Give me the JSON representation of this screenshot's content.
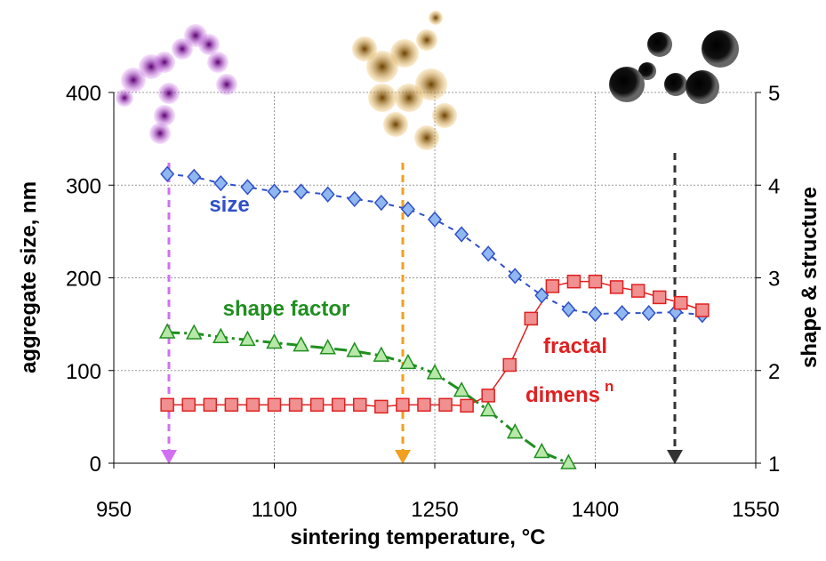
{
  "chart_data": {
    "type": "line",
    "xlabel": "sintering temperature, °C",
    "ylabel": "aggregate size, nm",
    "y2label": "shape & structure",
    "xlim": [
      950,
      1550
    ],
    "xticks": [
      950,
      1100,
      1250,
      1400,
      1550
    ],
    "ylim": [
      0,
      400
    ],
    "yticks": [
      0,
      100,
      200,
      300,
      400
    ],
    "y2lim": [
      1,
      5
    ],
    "y2ticks": [
      1,
      2,
      3,
      4,
      5
    ],
    "grid": true,
    "annotations": [
      "size",
      "shape factor",
      "fractal",
      "dimens",
      "n"
    ],
    "series": [
      {
        "name": "size",
        "color": "#3050c8",
        "marker": "diamond",
        "axis": "y",
        "x": [
          1000,
          1025,
          1050,
          1075,
          1100,
          1125,
          1150,
          1175,
          1200,
          1225,
          1250,
          1275,
          1300,
          1325,
          1350,
          1375,
          1400,
          1425,
          1450,
          1475,
          1500
        ],
        "values": [
          312,
          309,
          302,
          298,
          293,
          293,
          290,
          285,
          281,
          274,
          263,
          247,
          226,
          202,
          181,
          166,
          161,
          162,
          162,
          163,
          160
        ]
      },
      {
        "name": "shape factor",
        "color": "#1f8f1f",
        "marker": "triangle",
        "axis": "y2",
        "x": [
          1000,
          1025,
          1050,
          1075,
          1100,
          1125,
          1150,
          1175,
          1200,
          1225,
          1250,
          1275,
          1300,
          1325,
          1350,
          1375
        ],
        "values": [
          2.41,
          2.4,
          2.36,
          2.33,
          2.3,
          2.27,
          2.24,
          2.21,
          2.16,
          2.08,
          1.97,
          1.78,
          1.57,
          1.33,
          1.12,
          1.0
        ]
      },
      {
        "name": "fractal dimension",
        "color": "#e02020",
        "marker": "square",
        "axis": "y2",
        "x": [
          1000,
          1020,
          1040,
          1060,
          1080,
          1100,
          1120,
          1140,
          1160,
          1180,
          1200,
          1220,
          1240,
          1260,
          1280,
          1300,
          1320,
          1340,
          1360,
          1380,
          1400,
          1420,
          1440,
          1460,
          1480,
          1500
        ],
        "values": [
          1.63,
          1.63,
          1.63,
          1.63,
          1.63,
          1.63,
          1.63,
          1.63,
          1.63,
          1.63,
          1.61,
          1.63,
          1.63,
          1.63,
          1.62,
          1.73,
          2.06,
          2.56,
          2.91,
          2.96,
          2.96,
          2.9,
          2.86,
          2.79,
          2.73,
          2.65
        ]
      }
    ]
  }
}
